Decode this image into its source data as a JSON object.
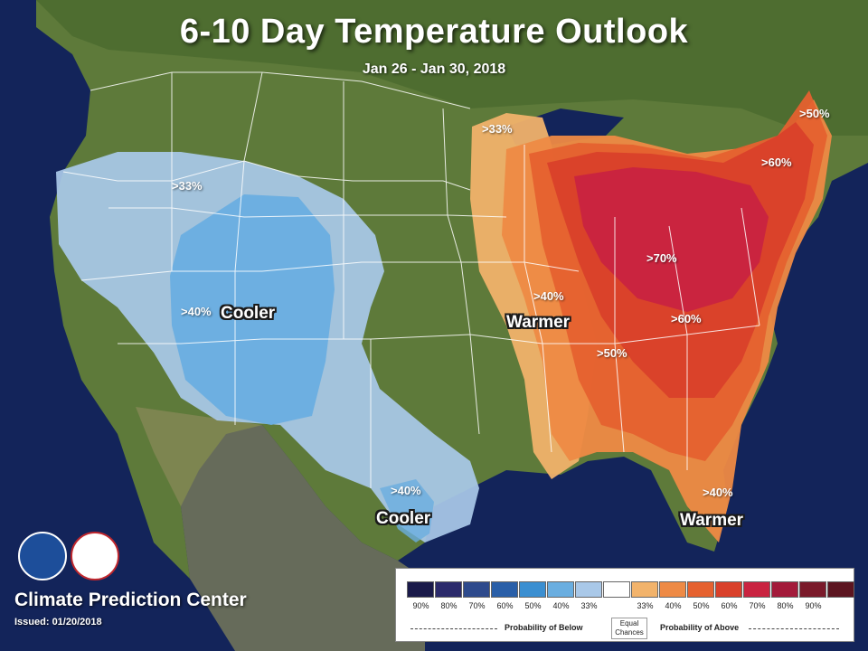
{
  "title": "6-10 Day Temperature Outlook",
  "subtitle": "Jan 26 - Jan 30, 2018",
  "organization": "Climate Prediction Center",
  "issued": "Issued: 01/20/2018",
  "labels": {
    "west_33": ">33%",
    "west_40": ">40%",
    "west_region": "Cooler",
    "texas_40": ">40%",
    "texas_region": "Cooler",
    "east_33": ">33%",
    "east_40": ">40%",
    "east_50": ">50%",
    "east_60": ">60%",
    "east_70": ">70%",
    "ne_60": ">60%",
    "maine_50": ">50%",
    "east_region": "Warmer",
    "florida_40": ">40%",
    "florida_region": "Warmer"
  },
  "legend": {
    "swatch_colors": [
      "#1a1a4a",
      "#2b2a6b",
      "#2e4a8c",
      "#2a5fa8",
      "#3b8fd1",
      "#6aaee0",
      "#a9c8e8",
      "#ffffff",
      "#f2b36b",
      "#ee8a45",
      "#e5612f",
      "#d9402a",
      "#c92340",
      "#a31a3a",
      "#7a1a2a",
      "#5c1520"
    ],
    "tick_labels": [
      "90%",
      "80%",
      "70%",
      "60%",
      "50%",
      "40%",
      "33%",
      "",
      "33%",
      "40%",
      "50%",
      "60%",
      "70%",
      "80%",
      "90%",
      ""
    ],
    "below_label": "Probability of Below",
    "above_label": "Probability of Above",
    "equal_label": "Equal Chances"
  }
}
